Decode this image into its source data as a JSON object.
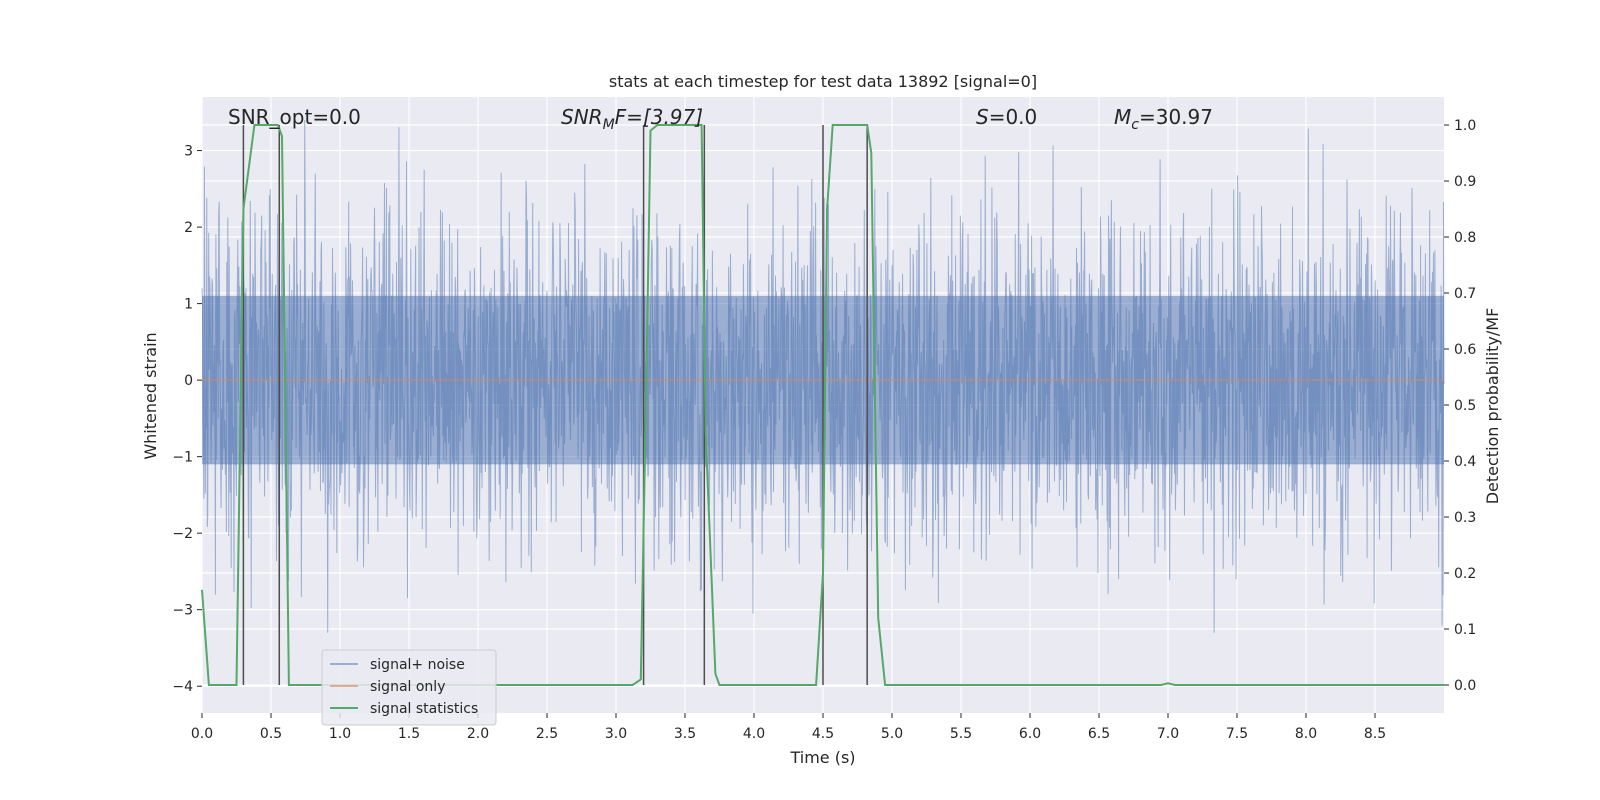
{
  "chart_data": {
    "type": "line",
    "title": "stats at each timestep for test data 13892 [signal=0]",
    "xlabel": "Time (s)",
    "ylabel_left": "Whitened strain",
    "ylabel_right": "Detection probability/MF",
    "xlim": [
      0.0,
      9.0
    ],
    "ylim_left": [
      -4.35,
      3.7
    ],
    "ylim_right": [
      -0.05,
      1.05
    ],
    "x_ticks": [
      "0.0",
      "0.5",
      "1.0",
      "1.5",
      "2.0",
      "2.5",
      "3.0",
      "3.5",
      "4.0",
      "4.5",
      "5.0",
      "5.5",
      "6.0",
      "6.5",
      "7.0",
      "7.5",
      "8.0",
      "8.5"
    ],
    "y_ticks_left": [
      "3",
      "2",
      "1",
      "0",
      "−1",
      "−2",
      "−3",
      "−4"
    ],
    "y_ticks_right": [
      "1.0",
      "0.9",
      "0.8",
      "0.7",
      "0.6",
      "0.5",
      "0.4",
      "0.3",
      "0.2",
      "0.1",
      "0.0"
    ],
    "grid": true,
    "legend_position": "lower-left",
    "annotations": {
      "snr_opt": "SNR_opt=0.0",
      "snr_mf_base": "SNR",
      "snr_mf_sub": "M",
      "snr_mf_rest": "F=[3.97]",
      "s_var": "S",
      "s_rest": "=0.0",
      "mc_base": "M",
      "mc_sub": "c",
      "mc_rest": "=30.97"
    },
    "series": [
      {
        "name": "signal+ noise",
        "color": "#4c72b0",
        "axis": "left",
        "style": "dense noise, amplitude approx ±2.5 with spikes to ±3.3",
        "noise_envelope": [
          -3.3,
          3.4
        ]
      },
      {
        "name": "signal only",
        "color": "#dd8452",
        "axis": "left",
        "x": [
          0.0,
          9.0
        ],
        "y": [
          0.0,
          0.0
        ]
      },
      {
        "name": "signal statistics",
        "color": "#55a868",
        "axis": "right",
        "x": [
          0.0,
          0.05,
          0.25,
          0.3,
          0.38,
          0.55,
          0.58,
          0.63,
          0.7,
          3.12,
          3.18,
          3.22,
          3.25,
          3.3,
          3.62,
          3.65,
          3.72,
          3.75,
          4.45,
          4.5,
          4.53,
          4.57,
          4.82,
          4.85,
          4.9,
          4.95,
          6.95,
          7.0,
          7.05,
          9.0
        ],
        "y": [
          0.17,
          0.0,
          0.0,
          0.85,
          1.0,
          1.0,
          0.98,
          0.0,
          0.0,
          0.0,
          0.01,
          0.55,
          0.99,
          1.0,
          1.0,
          0.45,
          0.02,
          0.0,
          0.0,
          0.2,
          0.85,
          1.0,
          1.0,
          0.95,
          0.12,
          0.0,
          0.0,
          0.003,
          0.0,
          0.0
        ]
      }
    ],
    "vertical_markers": [
      0.3,
      0.56,
      3.2,
      3.64,
      4.5,
      4.82
    ]
  },
  "colors": {
    "plot_background": "#eaeaf2",
    "grid": "#ffffff",
    "marker_line": "#4d4d4d"
  }
}
